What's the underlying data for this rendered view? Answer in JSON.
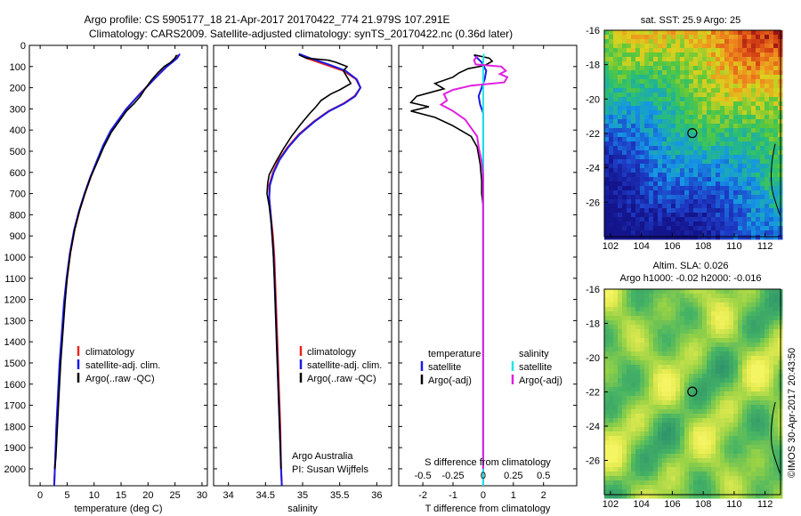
{
  "header": {
    "title_line1": "Argo profile: CS 5905177_18 21-Apr-2017 20170422_774 21.979S 107.291E",
    "title_line2": "Climatology: CARS2009. Satellite-adjusted climatology: synTS_20170422.nc (0.36d later)"
  },
  "side_label": "©IMOS 30-Apr-2017 20:43:50",
  "chart_data": [
    {
      "type": "line",
      "panel": "temperature",
      "xlabel": "temperature (deg C)",
      "xlim": [
        -2,
        31
      ],
      "xticks": [
        0,
        5,
        10,
        15,
        20,
        25,
        30
      ],
      "ylim": [
        2080,
        0
      ],
      "yticks": [
        0,
        100,
        200,
        300,
        400,
        500,
        600,
        700,
        800,
        900,
        1000,
        1100,
        1200,
        1300,
        1400,
        1500,
        1600,
        1700,
        1800,
        1900,
        2000
      ],
      "legend": [
        "climatology",
        "satellite-adj. clim.",
        "Argo(..raw -QC)"
      ],
      "series": [
        {
          "name": "climatology",
          "color": "#e8241f",
          "points": [
            [
              25.6,
              45
            ],
            [
              25.2,
              60
            ],
            [
              24.4,
              80
            ],
            [
              23.5,
              100
            ],
            [
              22.6,
              120
            ],
            [
              21.5,
              150
            ],
            [
              20.0,
              190
            ],
            [
              18.6,
              225
            ],
            [
              17.4,
              260
            ],
            [
              16.0,
              300
            ],
            [
              14.6,
              350
            ],
            [
              13.2,
              400
            ],
            [
              11.8,
              470
            ],
            [
              10.5,
              550
            ],
            [
              9.4,
              620
            ],
            [
              8.3,
              700
            ],
            [
              7.3,
              780
            ],
            [
              6.4,
              870
            ],
            [
              5.6,
              980
            ],
            [
              5.0,
              1100
            ],
            [
              4.5,
              1220
            ],
            [
              4.1,
              1360
            ],
            [
              3.7,
              1500
            ],
            [
              3.4,
              1650
            ],
            [
              3.1,
              1800
            ],
            [
              2.8,
              1950
            ],
            [
              2.6,
              2080
            ]
          ]
        },
        {
          "name": "satellite-adj. clim.",
          "color": "#1a1ae6",
          "points": [
            [
              25.9,
              40
            ],
            [
              25.4,
              60
            ],
            [
              24.5,
              80
            ],
            [
              23.5,
              100
            ],
            [
              22.5,
              125
            ],
            [
              21.3,
              155
            ],
            [
              20.0,
              190
            ],
            [
              18.7,
              225
            ],
            [
              17.3,
              262
            ],
            [
              15.9,
              302
            ],
            [
              14.5,
              352
            ],
            [
              13.1,
              402
            ],
            [
              11.7,
              472
            ],
            [
              10.4,
              552
            ],
            [
              9.3,
              622
            ],
            [
              8.2,
              702
            ],
            [
              7.2,
              782
            ],
            [
              6.3,
              872
            ],
            [
              5.5,
              982
            ],
            [
              4.9,
              1100
            ],
            [
              4.4,
              1220
            ],
            [
              4.0,
              1360
            ],
            [
              3.6,
              1500
            ],
            [
              3.3,
              1650
            ],
            [
              3.0,
              1800
            ],
            [
              2.8,
              1950
            ],
            [
              2.6,
              2080
            ]
          ]
        },
        {
          "name": "Argo(..raw -QC)",
          "color": "#000000",
          "points": [
            [
              25.3,
              45
            ],
            [
              25.0,
              60
            ],
            [
              24.2,
              80
            ],
            [
              23.0,
              100
            ],
            [
              21.8,
              130
            ],
            [
              20.6,
              165
            ],
            [
              19.6,
              200
            ],
            [
              18.6,
              240
            ],
            [
              17.4,
              275
            ],
            [
              16.0,
              310
            ],
            [
              14.6,
              360
            ],
            [
              13.2,
              410
            ],
            [
              11.8,
              480
            ],
            [
              10.6,
              550
            ],
            [
              9.4,
              620
            ],
            [
              8.3,
              700
            ],
            [
              7.3,
              780
            ],
            [
              6.4,
              870
            ],
            [
              5.6,
              980
            ],
            [
              5.0,
              1100
            ],
            [
              4.6,
              1220
            ],
            [
              4.2,
              1360
            ],
            [
              3.8,
              1500
            ],
            [
              3.5,
              1650
            ],
            [
              3.2,
              1800
            ],
            [
              2.9,
              1950
            ],
            [
              2.7,
              2000
            ]
          ]
        }
      ]
    },
    {
      "type": "line",
      "panel": "salinity",
      "xlabel": "salinity",
      "xlim": [
        33.8,
        36.2
      ],
      "xticks": [
        34,
        34.5,
        35,
        35.5,
        36
      ],
      "ylim": [
        2080,
        0
      ],
      "legend": [
        "climatology",
        "satellite-adj. clim.",
        "Argo(..raw -QC)"
      ],
      "annotation": [
        "Argo Australia",
        "PI: Susan Wijffels"
      ],
      "series": [
        {
          "name": "climatology",
          "color": "#e8241f",
          "points": [
            [
              34.95,
              40
            ],
            [
              35.05,
              60
            ],
            [
              35.3,
              90
            ],
            [
              35.55,
              120
            ],
            [
              35.72,
              160
            ],
            [
              35.78,
              200
            ],
            [
              35.7,
              240
            ],
            [
              35.55,
              275
            ],
            [
              35.35,
              310
            ],
            [
              35.15,
              360
            ],
            [
              34.95,
              420
            ],
            [
              34.8,
              480
            ],
            [
              34.68,
              540
            ],
            [
              34.6,
              600
            ],
            [
              34.55,
              660
            ],
            [
              34.55,
              720
            ],
            [
              34.57,
              800
            ],
            [
              34.6,
              900
            ],
            [
              34.62,
              1000
            ],
            [
              34.64,
              1200
            ],
            [
              34.66,
              1400
            ],
            [
              34.68,
              1600
            ],
            [
              34.7,
              1800
            ],
            [
              34.71,
              2000
            ],
            [
              34.72,
              2080
            ]
          ]
        },
        {
          "name": "satellite-adj. clim.",
          "color": "#1a1ae6",
          "points": [
            [
              34.95,
              40
            ],
            [
              35.1,
              60
            ],
            [
              35.35,
              90
            ],
            [
              35.58,
              120
            ],
            [
              35.73,
              160
            ],
            [
              35.78,
              200
            ],
            [
              35.71,
              240
            ],
            [
              35.56,
              275
            ],
            [
              35.36,
              310
            ],
            [
              35.16,
              360
            ],
            [
              34.96,
              420
            ],
            [
              34.81,
              480
            ],
            [
              34.69,
              540
            ],
            [
              34.61,
              600
            ],
            [
              34.56,
              660
            ],
            [
              34.55,
              720
            ],
            [
              34.57,
              800
            ],
            [
              34.59,
              900
            ],
            [
              34.61,
              1000
            ],
            [
              34.63,
              1200
            ],
            [
              34.65,
              1400
            ],
            [
              34.67,
              1600
            ],
            [
              34.69,
              1800
            ],
            [
              34.71,
              2000
            ],
            [
              34.72,
              2080
            ]
          ]
        },
        {
          "name": "Argo(..raw -QC)",
          "color": "#000000",
          "points": [
            [
              34.95,
              45
            ],
            [
              35.05,
              60
            ],
            [
              35.35,
              70
            ],
            [
              35.45,
              80
            ],
            [
              35.6,
              100
            ],
            [
              35.55,
              120
            ],
            [
              35.6,
              150
            ],
            [
              35.65,
              180
            ],
            [
              35.5,
              210
            ],
            [
              35.38,
              230
            ],
            [
              35.25,
              260
            ],
            [
              35.18,
              290
            ],
            [
              35.1,
              320
            ],
            [
              34.98,
              370
            ],
            [
              34.85,
              430
            ],
            [
              34.74,
              490
            ],
            [
              34.64,
              550
            ],
            [
              34.55,
              610
            ],
            [
              34.53,
              650
            ],
            [
              34.52,
              700
            ],
            [
              34.55,
              760
            ],
            [
              34.58,
              850
            ],
            [
              34.6,
              950
            ],
            [
              34.62,
              1100
            ],
            [
              34.64,
              1300
            ],
            [
              34.66,
              1500
            ],
            [
              34.68,
              1700
            ],
            [
              34.7,
              1900
            ],
            [
              34.71,
              2000
            ]
          ]
        }
      ]
    },
    {
      "type": "line",
      "panel": "difference",
      "xlabel": "T difference from climatology",
      "xlabel_top": "S difference from climatology",
      "t_xlim": [
        -2.8,
        3.1
      ],
      "t_xticks": [
        -2,
        -1,
        0,
        1,
        2
      ],
      "s_xticks": [
        -0.5,
        -0.25,
        0,
        0.25,
        0.5
      ],
      "s_xtick_labels": [
        "-0.5",
        "-0.25",
        "0",
        "0.25",
        "0.5"
      ],
      "ylim": [
        2080,
        0
      ],
      "legend_headers": [
        "temperature",
        "salinity"
      ],
      "legend": [
        "satellite",
        "Argo(-adj)",
        "satellite",
        "Argo(-adj)"
      ],
      "series": [
        {
          "name": "satellite",
          "color": "#1a1ae6",
          "points": [
            [
              -0.3,
              45
            ],
            [
              -0.05,
              80
            ],
            [
              0.1,
              120
            ],
            [
              0.05,
              160
            ],
            [
              -0.05,
              200
            ],
            [
              -0.15,
              240
            ],
            [
              -0.1,
              280
            ],
            [
              0,
              320
            ],
            [
              0,
              400
            ],
            [
              0,
              600
            ],
            [
              0,
              800
            ],
            [
              0,
              2080
            ]
          ]
        },
        {
          "name": "Argo(-adj)",
          "color": "#000000",
          "points": [
            [
              -0.3,
              45
            ],
            [
              0.2,
              60
            ],
            [
              0.3,
              75
            ],
            [
              0.05,
              95
            ],
            [
              -0.5,
              110
            ],
            [
              -0.8,
              130
            ],
            [
              -1.0,
              150
            ],
            [
              -1.6,
              180
            ],
            [
              -1.3,
              205
            ],
            [
              -2.2,
              240
            ],
            [
              -2.4,
              270
            ],
            [
              -1.8,
              290
            ],
            [
              -2.4,
              310
            ],
            [
              -1.6,
              340
            ],
            [
              -1.0,
              380
            ],
            [
              -0.4,
              430
            ],
            [
              -0.2,
              480
            ],
            [
              -0.1,
              560
            ],
            [
              -0.05,
              640
            ],
            [
              -0.05,
              700
            ],
            [
              0,
              760
            ],
            [
              0,
              820
            ],
            [
              0,
              900
            ],
            [
              0,
              2000
            ]
          ]
        },
        {
          "name": "satellite",
          "color": "#1fe6e6",
          "points": [
            [
              0.02,
              40
            ],
            [
              0,
              80
            ],
            [
              0,
              150
            ],
            [
              0,
              300
            ],
            [
              0,
              600
            ],
            [
              0,
              1000
            ],
            [
              0,
              2080
            ]
          ]
        },
        {
          "name": "Argo(-adj)",
          "color": "#e020e0",
          "points": [
            [
              -0.2,
              50
            ],
            [
              -0.3,
              70
            ],
            [
              -0.25,
              90
            ],
            [
              0.6,
              100
            ],
            [
              0.75,
              120
            ],
            [
              0.55,
              135
            ],
            [
              0.8,
              150
            ],
            [
              0.7,
              175
            ],
            [
              -0.4,
              190
            ],
            [
              -1.0,
              210
            ],
            [
              -1.3,
              230
            ],
            [
              -1.2,
              260
            ],
            [
              -1.4,
              280
            ],
            [
              -1.0,
              310
            ],
            [
              -0.6,
              350
            ],
            [
              -0.4,
              390
            ],
            [
              -0.2,
              430
            ],
            [
              -0.15,
              480
            ],
            [
              -0.05,
              550
            ],
            [
              0,
              620
            ],
            [
              0,
              700
            ],
            [
              0,
              900
            ],
            [
              0,
              2000
            ]
          ]
        }
      ]
    },
    {
      "type": "heatmap",
      "panel": "sst-map",
      "title": "sat. SST: 25.9 Argo: 25",
      "xlim": [
        101.6,
        113
      ],
      "ylim": [
        -28,
        -16
      ],
      "xticks": [
        102,
        104,
        106,
        108,
        110,
        112
      ],
      "yticks": [
        -16,
        -18,
        -20,
        -22,
        -24,
        -26
      ],
      "marker": {
        "lon": 107.29,
        "lat": -21.98
      }
    },
    {
      "type": "heatmap",
      "panel": "sla-map",
      "title_line1": "Altim. SLA: 0.026",
      "title_line2": "Argo h1000: -0.02 h2000: -0.016",
      "xlim": [
        101.6,
        113
      ],
      "ylim": [
        -28,
        -16
      ],
      "xticks": [
        102,
        104,
        106,
        108,
        110,
        112
      ],
      "yticks": [
        -16,
        -18,
        -20,
        -22,
        -24,
        -26
      ],
      "marker": {
        "lon": 107.29,
        "lat": -21.98
      }
    }
  ]
}
